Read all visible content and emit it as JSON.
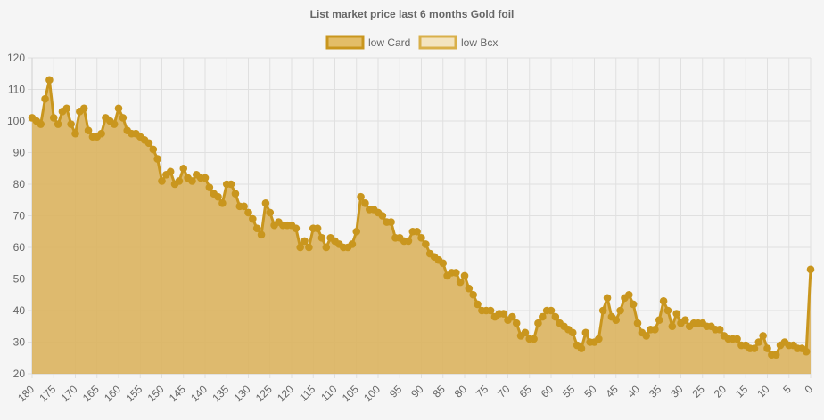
{
  "chart_data": {
    "type": "line",
    "title": "List market price last 6 months Gold foil",
    "legend": {
      "position": "top",
      "entries": [
        {
          "label": "low Card",
          "fill": "#e3bd68",
          "stroke": "#c9961e"
        },
        {
          "label": "low Bcx",
          "fill": "#f3e4c0",
          "stroke": "#d9b04a"
        }
      ]
    },
    "colors": {
      "line": "#c9961e",
      "area": "#dcb45f",
      "point": "#c9961e"
    },
    "grid": true,
    "xlim": [
      180,
      0
    ],
    "x_reversed": true,
    "x_ticks": [
      180,
      175,
      170,
      165,
      160,
      155,
      150,
      145,
      140,
      135,
      130,
      125,
      120,
      115,
      110,
      105,
      100,
      95,
      90,
      85,
      80,
      75,
      70,
      65,
      60,
      55,
      50,
      45,
      40,
      35,
      30,
      25,
      20,
      15,
      10,
      5,
      0
    ],
    "ylim": [
      20,
      120
    ],
    "y_ticks": [
      20,
      30,
      40,
      50,
      60,
      70,
      80,
      90,
      100,
      110,
      120
    ],
    "series": [
      {
        "name": "low Card",
        "x": [
          180,
          179,
          178,
          177,
          176,
          175,
          174,
          173,
          172,
          171,
          170,
          169,
          168,
          167,
          166,
          165,
          164,
          163,
          162,
          161,
          160,
          159,
          158,
          157,
          156,
          155,
          154,
          153,
          152,
          151,
          150,
          149,
          148,
          147,
          146,
          145,
          144,
          143,
          142,
          141,
          140,
          139,
          138,
          137,
          136,
          135,
          134,
          133,
          132,
          131,
          130,
          129,
          128,
          127,
          126,
          125,
          124,
          123,
          122,
          121,
          120,
          119,
          118,
          117,
          116,
          115,
          114,
          113,
          112,
          111,
          110,
          109,
          108,
          107,
          106,
          105,
          104,
          103,
          102,
          101,
          100,
          99,
          98,
          97,
          96,
          95,
          94,
          93,
          92,
          91,
          90,
          89,
          88,
          87,
          86,
          85,
          84,
          83,
          82,
          81,
          80,
          79,
          78,
          77,
          76,
          75,
          74,
          73,
          72,
          71,
          70,
          69,
          68,
          67,
          66,
          65,
          64,
          63,
          62,
          61,
          60,
          59,
          58,
          57,
          56,
          55,
          54,
          53,
          52,
          51,
          50,
          49,
          48,
          47,
          46,
          45,
          44,
          43,
          42,
          41,
          40,
          39,
          38,
          37,
          36,
          35,
          34,
          33,
          32,
          31,
          30,
          29,
          28,
          27,
          26,
          25,
          24,
          23,
          22,
          21,
          20,
          19,
          18,
          17,
          16,
          15,
          14,
          13,
          12,
          11,
          10,
          9,
          8,
          7,
          6,
          5,
          4,
          3,
          2,
          1,
          0
        ],
        "values": [
          101,
          100,
          99,
          107,
          113,
          101,
          99,
          103,
          104,
          99,
          96,
          103,
          104,
          97,
          95,
          95,
          96,
          101,
          100,
          99,
          104,
          101,
          97,
          96,
          96,
          95,
          94,
          93,
          91,
          88,
          81,
          83,
          84,
          80,
          81,
          85,
          82,
          81,
          83,
          82,
          82,
          79,
          77,
          76,
          74,
          80,
          80,
          77,
          73,
          73,
          71,
          69,
          66,
          64,
          74,
          71,
          67,
          68,
          67,
          67,
          67,
          66,
          60,
          62,
          60,
          66,
          66,
          63,
          60,
          63,
          62,
          61,
          60,
          60,
          61,
          65,
          76,
          74,
          72,
          72,
          71,
          70,
          68,
          68,
          63,
          63,
          62,
          62,
          65,
          65,
          63,
          61,
          58,
          57,
          56,
          55,
          51,
          52,
          52,
          49,
          51,
          47,
          45,
          42,
          40,
          40,
          40,
          38,
          39,
          39,
          37,
          38,
          36,
          32,
          33,
          31,
          31,
          36,
          38,
          40,
          40,
          38,
          36,
          35,
          34,
          33,
          29,
          28,
          33,
          30,
          30,
          31,
          40,
          44,
          38,
          37,
          40,
          44,
          45,
          42,
          36,
          33,
          32,
          34,
          34,
          37,
          43,
          40,
          35,
          39,
          36,
          37,
          35,
          36,
          36,
          36,
          35,
          35,
          34,
          34,
          32,
          31,
          31,
          31,
          29,
          29,
          28,
          28,
          30,
          32,
          28,
          26,
          26,
          29,
          30,
          29,
          29,
          28,
          28,
          27,
          53
        ]
      }
    ]
  }
}
